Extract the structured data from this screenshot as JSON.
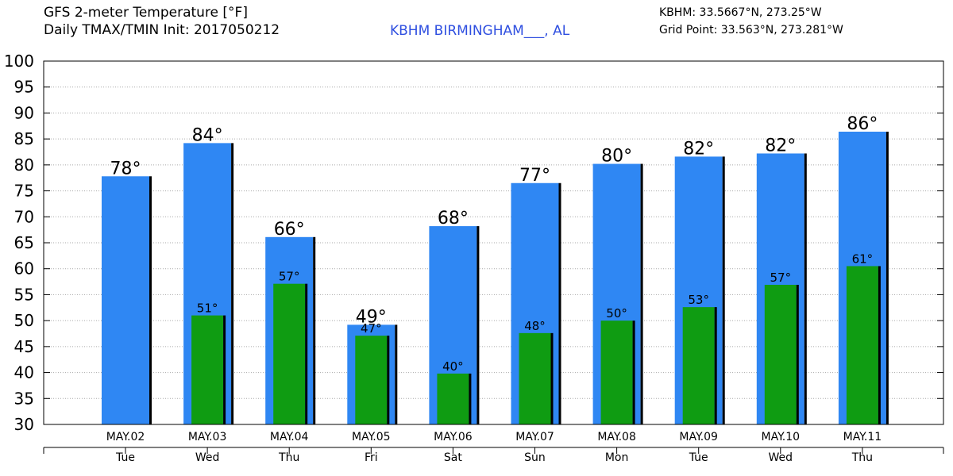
{
  "header": {
    "title_line1": "GFS 2-meter Temperature [°F]",
    "title_line2": "Daily TMAX/TMIN Init: 2017050212",
    "station": "KBHM BIRMINGHAM___, AL",
    "coord_line1": "KBHM: 33.5667°N, 273.25°W",
    "coord_line2": "Grid Point: 33.563°N, 273.281°W"
  },
  "colors": {
    "tmax": "#2f87f3",
    "tmin": "#0f9c12",
    "station_text": "#2f4fe0",
    "grid": "#aaaaaa"
  },
  "chart_data": {
    "type": "bar",
    "ylim": [
      30,
      100
    ],
    "yticks": [
      30,
      35,
      40,
      45,
      50,
      55,
      60,
      65,
      70,
      75,
      80,
      85,
      90,
      95,
      100
    ],
    "grid": true,
    "dates": [
      "MAY.02",
      "MAY.03",
      "MAY.04",
      "MAY.05",
      "MAY.06",
      "MAY.07",
      "MAY.08",
      "MAY.09",
      "MAY.10",
      "MAY.11"
    ],
    "days": [
      "Tue",
      "Wed",
      "Thu",
      "Fri",
      "Sat",
      "Sun",
      "Mon",
      "Tue",
      "Wed",
      "Thu"
    ],
    "series": [
      {
        "key": "tmax",
        "values": [
          77.8,
          84.2,
          66.1,
          49.2,
          68.2,
          76.5,
          80.2,
          81.6,
          82.2,
          86.4
        ],
        "labels": [
          "78°",
          "84°",
          "66°",
          "49°",
          "68°",
          "77°",
          "80°",
          "82°",
          "82°",
          "86°"
        ]
      },
      {
        "key": "tmin",
        "values": [
          null,
          51.0,
          57.1,
          47.1,
          39.8,
          47.6,
          50.0,
          52.6,
          56.9,
          60.5
        ],
        "labels": [
          null,
          "51°",
          "57°",
          "47°",
          "40°",
          "48°",
          "50°",
          "53°",
          "57°",
          "61°"
        ]
      }
    ]
  }
}
